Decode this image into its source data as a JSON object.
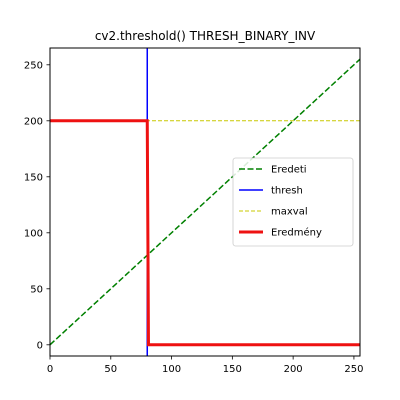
{
  "chart_data": {
    "type": "line",
    "title": "cv2.threshold() THRESH_BINARY_INV",
    "xlabel": "",
    "ylabel": "",
    "xlim": [
      0,
      255
    ],
    "ylim": [
      -10,
      265
    ],
    "xticks": [
      0,
      50,
      100,
      150,
      200,
      250
    ],
    "yticks": [
      0,
      50,
      100,
      150,
      200,
      250
    ],
    "grid": false,
    "legend_position": "center-right",
    "series": [
      {
        "name": "Eredeti",
        "color": "#008000",
        "style": "dashed",
        "width": 1.5,
        "x": [
          0,
          255
        ],
        "y": [
          0,
          255
        ]
      },
      {
        "name": "thresh",
        "color": "#0000ff",
        "style": "solid",
        "width": 1.5,
        "x": [
          80,
          80
        ],
        "y": [
          -10,
          265
        ]
      },
      {
        "name": "maxval",
        "color": "#c8c800",
        "style": "dashed",
        "width": 1,
        "x": [
          0,
          255
        ],
        "y": [
          200,
          200
        ]
      },
      {
        "name": "Eredmény",
        "color": "#ee1111",
        "style": "solid",
        "width": 3,
        "x": [
          0,
          80,
          81,
          255
        ],
        "y": [
          200,
          200,
          0,
          0
        ]
      }
    ]
  }
}
